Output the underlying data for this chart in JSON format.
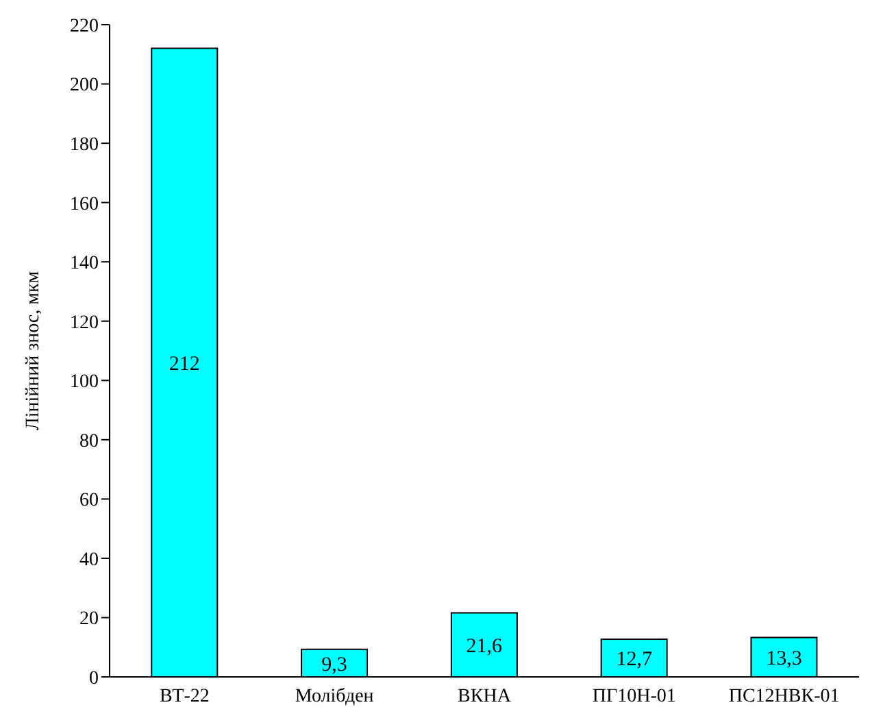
{
  "chart_data": {
    "type": "bar",
    "ylabel": "Лінійний знос, мкм",
    "categories": [
      "ВТ-22",
      "Молібден",
      "ВКНА",
      "ПГ10Н-01",
      "ПС12НВК-01"
    ],
    "values": [
      212,
      9.3,
      21.6,
      12.7,
      13.3
    ],
    "value_labels": [
      "212",
      "9,3",
      "21,6",
      "12,7",
      "13,3"
    ],
    "color": "#00ffff",
    "ylim": [
      0,
      220
    ],
    "yticks": [
      0,
      20,
      40,
      60,
      80,
      100,
      120,
      140,
      160,
      180,
      200,
      220
    ],
    "grid": false
  }
}
